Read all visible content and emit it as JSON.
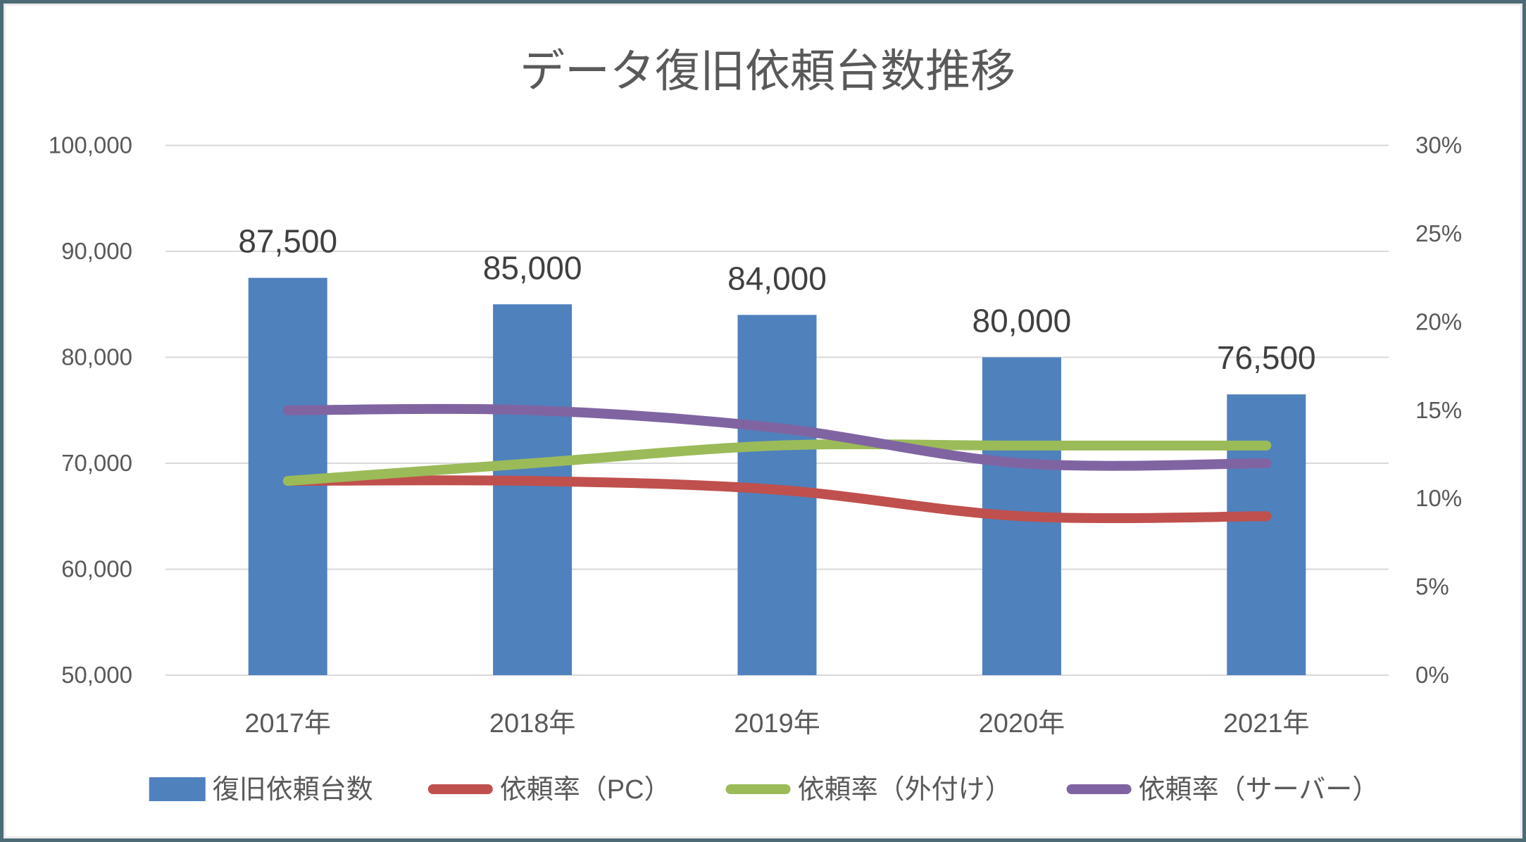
{
  "frame": {
    "border_color": "#4C6B76",
    "inner_edge_color": "#EBEBEB",
    "background": "#FFFFFF"
  },
  "chart_data": {
    "type": "combo-bar-line",
    "title": "データ復旧依頼台数推移",
    "categories": [
      "2017年",
      "2018年",
      "2019年",
      "2020年",
      "2021年"
    ],
    "bar_series": {
      "name": "復旧依頼台数",
      "color": "#4F81BD",
      "axis": "left",
      "values": [
        87500,
        85000,
        84000,
        80000,
        76500
      ],
      "data_labels": [
        "87,500",
        "85,000",
        "84,000",
        "80,000",
        "76,500"
      ]
    },
    "line_series": [
      {
        "name": "依頼率（PC）",
        "color": "#C0504D",
        "axis": "right",
        "values_pct": [
          11,
          11,
          10.5,
          9,
          9
        ]
      },
      {
        "name": "依頼率（外付け）",
        "color": "#9BBB59",
        "axis": "right",
        "values_pct": [
          11,
          12,
          13,
          13,
          13
        ]
      },
      {
        "name": "依頼率（サーバー）",
        "color": "#8064A2",
        "axis": "right",
        "values_pct": [
          15,
          15,
          14,
          12,
          12
        ]
      }
    ],
    "left_axis": {
      "min": 50000,
      "max": 100000,
      "step": 10000,
      "tick_labels": [
        "100,000",
        "90,000",
        "80,000",
        "70,000",
        "60,000",
        "50,000"
      ]
    },
    "right_axis": {
      "min": 0,
      "max": 30,
      "step": 5,
      "tick_labels": [
        "30%",
        "25%",
        "20%",
        "15%",
        "10%",
        "5%",
        "0%"
      ]
    },
    "grid": true,
    "gridline_color": "#D9D9D9",
    "legend_position": "bottom",
    "text_colors": {
      "title": "#595959",
      "axis": "#595959",
      "data_label": "#404040",
      "legend": "#595959"
    }
  }
}
